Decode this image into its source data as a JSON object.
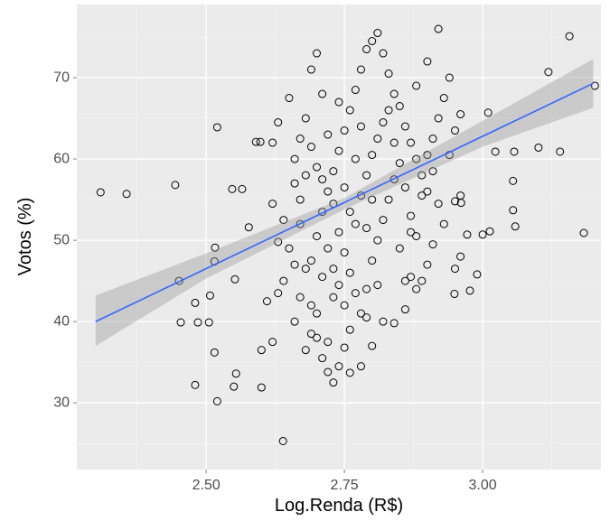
{
  "chart_data": {
    "type": "scatter",
    "x_label": "Log.Renda (R$)",
    "y_label": "Votos (%)",
    "xlim": [
      2.266,
      3.214
    ],
    "ylim": [
      21.8,
      79.0
    ],
    "xticks": [
      {
        "value": 2.5,
        "label": "2.50"
      },
      {
        "value": 2.75,
        "label": "2.75"
      },
      {
        "value": 3,
        "label": "3.00"
      }
    ],
    "yticks": [
      30,
      40,
      50,
      60,
      70
    ],
    "x_minor_ticks": [
      2.375,
      2.625,
      2.875,
      3.125
    ],
    "y_minor_ticks": [
      25,
      35,
      45,
      55,
      65,
      75
    ],
    "grid": true,
    "panel_color": "#ebebeb",
    "point_color": "#000000",
    "points": {
      "x": [
        2.309,
        2.356,
        2.444,
        2.451,
        2.454,
        2.48,
        2.485,
        2.48,
        2.505,
        2.507,
        2.515,
        2.516,
        2.52,
        2.52,
        2.515,
        2.547,
        2.565,
        2.554,
        2.552,
        2.55,
        2.577,
        2.59,
        2.598,
        2.639,
        3.157,
        3.119,
        3.203,
        3.101,
        3.14,
        3.183,
        3.057,
        3.023,
        3.01,
        3.055,
        3.055,
        3.059,
        3.013,
        3.0,
        2.99,
        2.977,
        2.949,
        2.972,
        2.961,
        2.62,
        2.63,
        2.64,
        2.62,
        2.63,
        2.65,
        2.66,
        2.67,
        2.68,
        2.69,
        2.7,
        2.68,
        2.71,
        2.72,
        2.73,
        2.74,
        2.75,
        2.76,
        2.78,
        2.8,
        2.79,
        2.82,
        2.84,
        2.86,
        2.88,
        2.87,
        2.66,
        2.67,
        2.69,
        2.7,
        2.71,
        2.72,
        2.73,
        2.74,
        2.75,
        2.76,
        2.77,
        2.78,
        2.79,
        2.8,
        2.81,
        2.82,
        2.83,
        2.84,
        2.85,
        2.86,
        2.87,
        2.88,
        2.89,
        2.9,
        2.91,
        2.92,
        2.93,
        2.94,
        2.92,
        2.9,
        2.88,
        2.95,
        2.96,
        2.94,
        2.95,
        2.96,
        2.93,
        2.91,
        2.9,
        2.89,
        2.95,
        2.96,
        2.66,
        2.67,
        2.68,
        2.69,
        2.7,
        2.71,
        2.72,
        2.73,
        2.74,
        2.75,
        2.76,
        2.77,
        2.78,
        2.79,
        2.8,
        2.81,
        2.82,
        2.83,
        2.84,
        2.85,
        2.86,
        2.87,
        2.88,
        2.89,
        2.9,
        2.91,
        2.92,
        2.64,
        2.65,
        2.66,
        2.67,
        2.68,
        2.69,
        2.7,
        2.71,
        2.72,
        2.73,
        2.74,
        2.75,
        2.76,
        2.77,
        2.78,
        2.79,
        2.8,
        2.81,
        2.82,
        2.83,
        2.84,
        2.85,
        2.86,
        2.87,
        2.81,
        2.8,
        2.77,
        2.78,
        2.74,
        2.76,
        2.79,
        2.75,
        2.73,
        2.71,
        2.7,
        2.69,
        2.72,
        2.61,
        2.6,
        2.62,
        2.6,
        2.63
      ],
      "values": [
        55.9,
        55.7,
        56.8,
        45.0,
        39.9,
        42.3,
        39.9,
        32.2,
        39.9,
        43.2,
        36.2,
        49.1,
        30.2,
        63.9,
        47.4,
        56.3,
        56.3,
        33.6,
        45.2,
        32.0,
        51.6,
        62.1,
        62.1,
        25.3,
        75.1,
        70.7,
        69.0,
        61.4,
        60.9,
        50.9,
        60.9,
        60.9,
        65.7,
        57.3,
        53.7,
        51.7,
        51.1,
        50.7,
        45.8,
        43.8,
        43.4,
        50.7,
        54.6,
        54.5,
        49.8,
        45.0,
        62.0,
        64.5,
        67.5,
        57.0,
        52.0,
        46.5,
        42.0,
        38.0,
        36.5,
        35.5,
        33.8,
        32.5,
        34.5,
        36.8,
        33.7,
        34.5,
        37.0,
        40.5,
        40.0,
        39.8,
        41.5,
        44.0,
        45.5,
        40.0,
        43.0,
        47.5,
        50.5,
        53.5,
        56.0,
        58.5,
        61.0,
        63.5,
        66.0,
        68.5,
        71.0,
        73.5,
        74.5,
        75.5,
        73.0,
        70.5,
        68.0,
        66.5,
        64.0,
        62.0,
        60.0,
        58.0,
        56.0,
        62.5,
        65.0,
        67.5,
        70.0,
        76.0,
        72.0,
        69.0,
        63.5,
        65.5,
        60.5,
        54.8,
        55.5,
        52.0,
        49.5,
        47.0,
        45.0,
        46.5,
        48.0,
        60.0,
        62.5,
        65.0,
        71.0,
        73.0,
        68.0,
        63.0,
        54.5,
        51.0,
        48.5,
        46.0,
        43.5,
        41.0,
        44.0,
        47.5,
        50.0,
        52.5,
        55.0,
        57.5,
        59.5,
        56.5,
        53.0,
        50.5,
        55.5,
        60.5,
        58.5,
        54.5,
        52.5,
        49.0,
        47.0,
        55.0,
        58.0,
        61.5,
        59.0,
        57.5,
        49.0,
        46.5,
        44.5,
        42.0,
        39.0,
        52.0,
        55.5,
        58.0,
        60.5,
        62.5,
        64.5,
        66.0,
        62.0,
        49.0,
        45.0,
        51.0,
        44.5,
        55.0,
        60.0,
        64.0,
        67.0,
        53.5,
        51.5,
        56.5,
        43.0,
        45.5,
        41.0,
        38.5,
        37.5,
        42.5,
        36.5,
        37.5,
        31.9,
        43.5
      ]
    },
    "fit": {
      "x": [
        2.3,
        3.2
      ],
      "values": [
        40.0,
        69.3
      ],
      "color": "#3366ff"
    },
    "band": {
      "x": [
        2.3,
        2.5,
        2.75,
        3.0,
        3.2
      ],
      "lower": [
        37.0,
        45.3,
        53.8,
        61.5,
        66.3
      ],
      "upper": [
        43.2,
        48.4,
        55.2,
        64.7,
        72.3
      ],
      "color": "#999999"
    }
  }
}
